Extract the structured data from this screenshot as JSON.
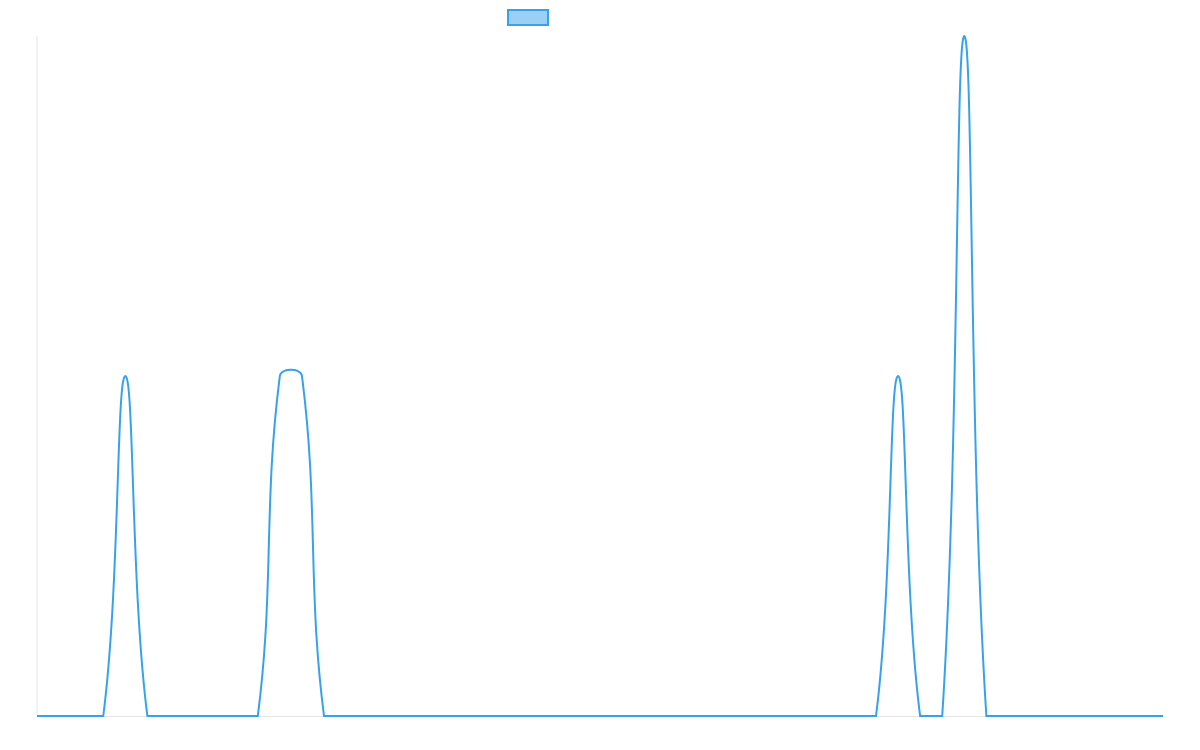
{
  "chart_data": {
    "type": "line",
    "categories": [
      null,
      null,
      null,
      null,
      null,
      null,
      null,
      null,
      null,
      null,
      null,
      null,
      null,
      null,
      null,
      null,
      null,
      null,
      null,
      null,
      null,
      null,
      null,
      null,
      null,
      null,
      null,
      null,
      null,
      null,
      null,
      null,
      null,
      null,
      null,
      null,
      null,
      null,
      null,
      null,
      null,
      null,
      null,
      null,
      null,
      null,
      null,
      null,
      null,
      null,
      null,
      null
    ],
    "series": [
      {
        "color": "#36a2eb",
        "fill": "#9ad0f5",
        "values": [
          0,
          0,
          0,
          0,
          1,
          0,
          0,
          0,
          0,
          0,
          0,
          1,
          1,
          0,
          0,
          0,
          0,
          0,
          0,
          0,
          0,
          0,
          0,
          0,
          0,
          0,
          0,
          0,
          0,
          0,
          0,
          0,
          0,
          0,
          0,
          0,
          0,
          0,
          0,
          1,
          0,
          0,
          2,
          0,
          0,
          0,
          0,
          0,
          0,
          0,
          0,
          0
        ]
      }
    ],
    "ylim": [
      0,
      2
    ],
    "legend": "top"
  }
}
